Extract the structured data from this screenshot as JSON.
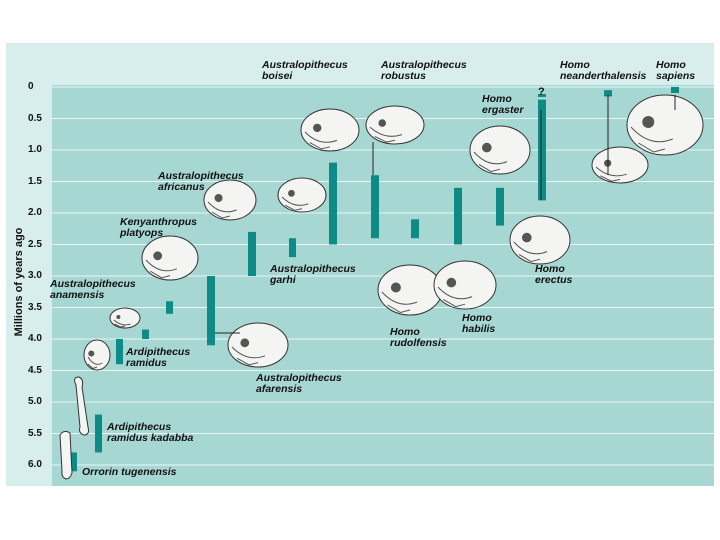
{
  "chart_data": {
    "type": "timeline",
    "ylabel": "Millions of years ago",
    "y_ticks": [
      "0",
      "0.5",
      "1.0",
      "1.5",
      "2.0",
      "2.5",
      "3.0",
      "3.5",
      "4.0",
      "4.5",
      "5.0",
      "5.5",
      "6.0"
    ],
    "ylim": [
      0,
      6.0
    ],
    "colors": {
      "panel": "#a6d7d3",
      "panel_light": "#d8eeec",
      "bar": "#0f8b86",
      "grid": "#eaf6f5"
    },
    "species": [
      {
        "id": "orrorin",
        "line1": "Orrorin tugenensis",
        "line2": "",
        "range_mya": [
          5.8,
          6.1
        ]
      },
      {
        "id": "kadabba",
        "line1": "Ardipithecus",
        "line2": "ramidus kadabba",
        "range_mya": [
          5.2,
          5.8
        ]
      },
      {
        "id": "ramidus",
        "line1": "Ardipithecus",
        "line2": "ramidus",
        "range_mya": [
          4.4,
          4.0
        ]
      },
      {
        "id": "anamensis",
        "line1": "Australopithecus",
        "line2": "anamensis",
        "range_mya": [
          3.9,
          4.1
        ]
      },
      {
        "id": "afarensis",
        "line1": "Australopithecus",
        "line2": "afarensis",
        "range_mya": [
          3.0,
          4.1
        ]
      },
      {
        "id": "platyops",
        "line1": "Kenyanthropus",
        "line2": "platyops",
        "range_mya": [
          3.4,
          3.6
        ]
      },
      {
        "id": "africanus",
        "line1": "Australopithecus",
        "line2": "africanus",
        "range_mya": [
          2.3,
          3.0
        ]
      },
      {
        "id": "garhi",
        "line1": "Australopithecus",
        "line2": "garhi",
        "range_mya": [
          2.4,
          2.7
        ]
      },
      {
        "id": "boisei",
        "line1": "Australopithecus",
        "line2": "boisei",
        "range_mya": [
          1.2,
          2.5
        ]
      },
      {
        "id": "robustus",
        "line1": "Australopithecus",
        "line2": "robustus",
        "range_mya": [
          1.4,
          2.4
        ]
      },
      {
        "id": "rudolfensis",
        "line1": "Homo",
        "line2": "rudolfensis",
        "range_mya": [
          2.1,
          2.4
        ]
      },
      {
        "id": "habilis",
        "line1": "Homo",
        "line2": "habilis",
        "range_mya": [
          1.6,
          2.5
        ]
      },
      {
        "id": "ergaster",
        "line1": "Homo",
        "line2": "ergaster",
        "range_mya": [
          1.6,
          2.2
        ]
      },
      {
        "id": "erectus",
        "line1": "Homo",
        "line2": "erectus",
        "range_mya": [
          0.2,
          1.8
        ]
      },
      {
        "id": "neanderthalensis",
        "line1": "Homo",
        "line2": "neanderthalensis",
        "range_mya": [
          0.03,
          0.2
        ]
      },
      {
        "id": "sapiens",
        "line1": "Homo",
        "line2": "sapiens",
        "range_mya": [
          0.0,
          0.1
        ]
      }
    ],
    "annotations": [
      "?"
    ]
  }
}
